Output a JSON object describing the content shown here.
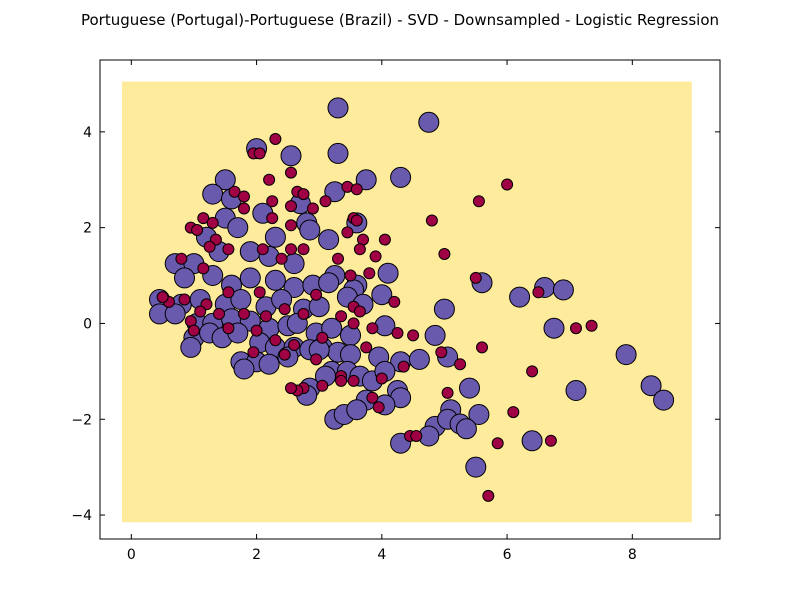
{
  "chart_data": {
    "type": "scatter",
    "title": "Portuguese (Portugal)-Portuguese (Brazil) - SVD - Downsampled - Logistic Regression",
    "xlabel": "",
    "ylabel": "",
    "xlim": [
      -0.5,
      9.4
    ],
    "ylim": [
      -4.5,
      5.5
    ],
    "xticks": [
      0,
      2,
      4,
      6,
      8
    ],
    "xtick_labels": [
      "0",
      "2",
      "4",
      "6",
      "8"
    ],
    "yticks": [
      -4,
      -2,
      0,
      2,
      4
    ],
    "ytick_labels": [
      "−4",
      "−2",
      "0",
      "2",
      "4"
    ],
    "grid": false,
    "decision_region": {
      "x": [
        -0.15,
        8.95
      ],
      "y": [
        -4.15,
        5.05
      ],
      "color": "#ffeb9c"
    },
    "series": [
      {
        "color": "#6a5aad",
        "edge_color": "#000000",
        "points": [
          [
            3.3,
            4.5
          ],
          [
            4.75,
            4.2
          ],
          [
            2.0,
            3.65
          ],
          [
            2.55,
            3.5
          ],
          [
            3.3,
            3.55
          ],
          [
            1.5,
            3.0
          ],
          [
            3.75,
            3.0
          ],
          [
            4.3,
            3.05
          ],
          [
            1.3,
            2.7
          ],
          [
            1.6,
            2.6
          ],
          [
            2.7,
            2.5
          ],
          [
            3.25,
            2.75
          ],
          [
            1.5,
            2.2
          ],
          [
            2.1,
            2.3
          ],
          [
            2.8,
            2.1
          ],
          [
            3.6,
            2.1
          ],
          [
            1.2,
            1.8
          ],
          [
            1.7,
            2.0
          ],
          [
            2.3,
            1.8
          ],
          [
            2.85,
            1.95
          ],
          [
            3.15,
            1.75
          ],
          [
            0.7,
            1.25
          ],
          [
            1.0,
            1.25
          ],
          [
            1.4,
            1.5
          ],
          [
            1.9,
            1.5
          ],
          [
            2.2,
            1.4
          ],
          [
            2.6,
            1.25
          ],
          [
            3.25,
            1.0
          ],
          [
            3.6,
            0.8
          ],
          [
            4.1,
            1.05
          ],
          [
            0.85,
            0.95
          ],
          [
            1.3,
            1.0
          ],
          [
            1.6,
            0.8
          ],
          [
            1.9,
            0.95
          ],
          [
            2.3,
            0.9
          ],
          [
            2.6,
            0.75
          ],
          [
            2.9,
            0.8
          ],
          [
            3.15,
            0.85
          ],
          [
            3.55,
            0.7
          ],
          [
            4.0,
            0.6
          ],
          [
            0.45,
            0.5
          ],
          [
            0.8,
            0.4
          ],
          [
            1.1,
            0.5
          ],
          [
            1.5,
            0.4
          ],
          [
            1.75,
            0.5
          ],
          [
            2.15,
            0.35
          ],
          [
            2.4,
            0.5
          ],
          [
            2.75,
            0.3
          ],
          [
            3.0,
            0.35
          ],
          [
            3.45,
            0.55
          ],
          [
            3.7,
            0.4
          ],
          [
            0.45,
            0.2
          ],
          [
            0.7,
            0.2
          ],
          [
            1.05,
            0.0
          ],
          [
            1.3,
            0.0
          ],
          [
            1.6,
            0.1
          ],
          [
            1.9,
            0.05
          ],
          [
            2.2,
            -0.1
          ],
          [
            2.5,
            -0.05
          ],
          [
            2.65,
            0.0
          ],
          [
            2.95,
            -0.2
          ],
          [
            3.2,
            -0.1
          ],
          [
            3.5,
            -0.25
          ],
          [
            4.05,
            -0.05
          ],
          [
            1.0,
            -0.3
          ],
          [
            1.25,
            -0.2
          ],
          [
            1.45,
            -0.3
          ],
          [
            1.7,
            -0.2
          ],
          [
            2.05,
            -0.4
          ],
          [
            2.3,
            -0.5
          ],
          [
            2.6,
            -0.5
          ],
          [
            2.85,
            -0.55
          ],
          [
            3.05,
            -0.5
          ],
          [
            3.3,
            -0.6
          ],
          [
            0.95,
            -0.5
          ],
          [
            1.75,
            -0.8
          ],
          [
            2.0,
            -0.8
          ],
          [
            2.2,
            -0.85
          ],
          [
            2.5,
            -0.7
          ],
          [
            3.0,
            -0.55
          ],
          [
            3.5,
            -0.65
          ],
          [
            3.95,
            -0.7
          ],
          [
            4.3,
            -0.8
          ],
          [
            4.6,
            -0.75
          ],
          [
            1.8,
            -0.95
          ],
          [
            3.2,
            -1.0
          ],
          [
            3.45,
            -1.0
          ],
          [
            3.65,
            -1.1
          ],
          [
            3.85,
            -1.2
          ],
          [
            4.05,
            -1.0
          ],
          [
            2.85,
            -1.35
          ],
          [
            3.1,
            -1.1
          ],
          [
            3.75,
            -1.6
          ],
          [
            4.25,
            -1.4
          ],
          [
            4.3,
            -1.55
          ],
          [
            2.8,
            -1.5
          ],
          [
            3.25,
            -2.0
          ],
          [
            3.4,
            -1.9
          ],
          [
            3.6,
            -1.8
          ],
          [
            4.05,
            -1.7
          ],
          [
            4.85,
            -0.25
          ],
          [
            5.0,
            0.3
          ],
          [
            5.6,
            0.85
          ],
          [
            5.05,
            -0.7
          ],
          [
            5.4,
            -1.35
          ],
          [
            4.85,
            -2.15
          ],
          [
            5.1,
            -1.8
          ],
          [
            5.55,
            -1.9
          ],
          [
            5.05,
            -2.0
          ],
          [
            5.25,
            -2.1
          ],
          [
            5.35,
            -2.2
          ],
          [
            4.3,
            -2.5
          ],
          [
            4.75,
            -2.35
          ],
          [
            5.5,
            -3.0
          ],
          [
            6.2,
            0.55
          ],
          [
            6.6,
            0.75
          ],
          [
            6.9,
            0.7
          ],
          [
            6.75,
            -0.1
          ],
          [
            7.1,
            -1.4
          ],
          [
            7.9,
            -0.65
          ],
          [
            8.3,
            -1.3
          ],
          [
            8.5,
            -1.6
          ],
          [
            6.4,
            -2.45
          ]
        ]
      },
      {
        "color": "#a00044",
        "edge_color": "#000000",
        "points": [
          [
            2.3,
            3.85
          ],
          [
            1.95,
            3.55
          ],
          [
            2.05,
            3.55
          ],
          [
            2.55,
            3.15
          ],
          [
            2.2,
            3.0
          ],
          [
            1.65,
            2.75
          ],
          [
            1.8,
            2.65
          ],
          [
            2.25,
            2.55
          ],
          [
            2.65,
            2.75
          ],
          [
            2.75,
            2.7
          ],
          [
            3.45,
            2.85
          ],
          [
            3.6,
            2.8
          ],
          [
            3.1,
            2.55
          ],
          [
            2.9,
            2.4
          ],
          [
            2.55,
            2.45
          ],
          [
            1.8,
            2.4
          ],
          [
            1.15,
            2.2
          ],
          [
            1.3,
            2.1
          ],
          [
            2.25,
            2.2
          ],
          [
            3.55,
            2.2
          ],
          [
            3.6,
            2.15
          ],
          [
            0.95,
            2.0
          ],
          [
            1.05,
            1.95
          ],
          [
            1.35,
            1.75
          ],
          [
            2.55,
            2.05
          ],
          [
            3.45,
            1.9
          ],
          [
            4.05,
            1.75
          ],
          [
            3.7,
            1.75
          ],
          [
            1.25,
            1.6
          ],
          [
            1.55,
            1.55
          ],
          [
            2.1,
            1.55
          ],
          [
            2.55,
            1.55
          ],
          [
            2.75,
            1.55
          ],
          [
            3.65,
            1.55
          ],
          [
            3.9,
            1.4
          ],
          [
            5.0,
            1.45
          ],
          [
            0.8,
            1.35
          ],
          [
            1.15,
            1.15
          ],
          [
            2.4,
            1.35
          ],
          [
            3.3,
            1.35
          ],
          [
            3.5,
            1.0
          ],
          [
            3.8,
            1.05
          ],
          [
            0.6,
            0.45
          ],
          [
            0.85,
            0.5
          ],
          [
            1.2,
            0.4
          ],
          [
            1.55,
            0.65
          ],
          [
            2.05,
            0.65
          ],
          [
            2.95,
            0.6
          ],
          [
            3.55,
            0.35
          ],
          [
            3.65,
            0.25
          ],
          [
            4.2,
            0.45
          ],
          [
            0.5,
            0.55
          ],
          [
            0.95,
            0.05
          ],
          [
            1.1,
            0.25
          ],
          [
            1.4,
            0.2
          ],
          [
            1.8,
            0.2
          ],
          [
            2.15,
            0.15
          ],
          [
            2.45,
            0.3
          ],
          [
            2.75,
            0.2
          ],
          [
            3.35,
            0.15
          ],
          [
            3.55,
            0.0
          ],
          [
            1.0,
            -0.15
          ],
          [
            1.55,
            -0.1
          ],
          [
            2.0,
            -0.15
          ],
          [
            2.3,
            -0.35
          ],
          [
            2.6,
            -0.45
          ],
          [
            3.05,
            -0.3
          ],
          [
            3.85,
            -0.1
          ],
          [
            4.25,
            -0.2
          ],
          [
            1.95,
            -0.6
          ],
          [
            2.45,
            -0.65
          ],
          [
            2.95,
            -0.75
          ],
          [
            3.75,
            -0.5
          ],
          [
            4.5,
            -0.25
          ],
          [
            4.95,
            -0.6
          ],
          [
            5.6,
            -0.5
          ],
          [
            5.25,
            -0.85
          ],
          [
            4.35,
            -0.9
          ],
          [
            3.55,
            -1.2
          ],
          [
            3.35,
            -1.1
          ],
          [
            4.0,
            -1.15
          ],
          [
            3.05,
            -1.3
          ],
          [
            2.75,
            -1.35
          ],
          [
            2.65,
            -1.4
          ],
          [
            2.55,
            -1.35
          ],
          [
            3.85,
            -1.55
          ],
          [
            3.95,
            -1.75
          ],
          [
            3.35,
            -1.2
          ],
          [
            5.05,
            -1.45
          ],
          [
            4.45,
            -2.35
          ],
          [
            4.55,
            -2.35
          ],
          [
            5.85,
            -2.5
          ],
          [
            5.7,
            -3.6
          ],
          [
            6.1,
            -1.85
          ],
          [
            6.4,
            -1.0
          ],
          [
            6.7,
            -2.45
          ],
          [
            6.5,
            0.65
          ],
          [
            7.1,
            -0.1
          ],
          [
            7.35,
            -0.05
          ],
          [
            6.0,
            2.9
          ],
          [
            5.55,
            2.55
          ],
          [
            4.8,
            2.15
          ],
          [
            5.5,
            0.95
          ]
        ]
      }
    ]
  }
}
